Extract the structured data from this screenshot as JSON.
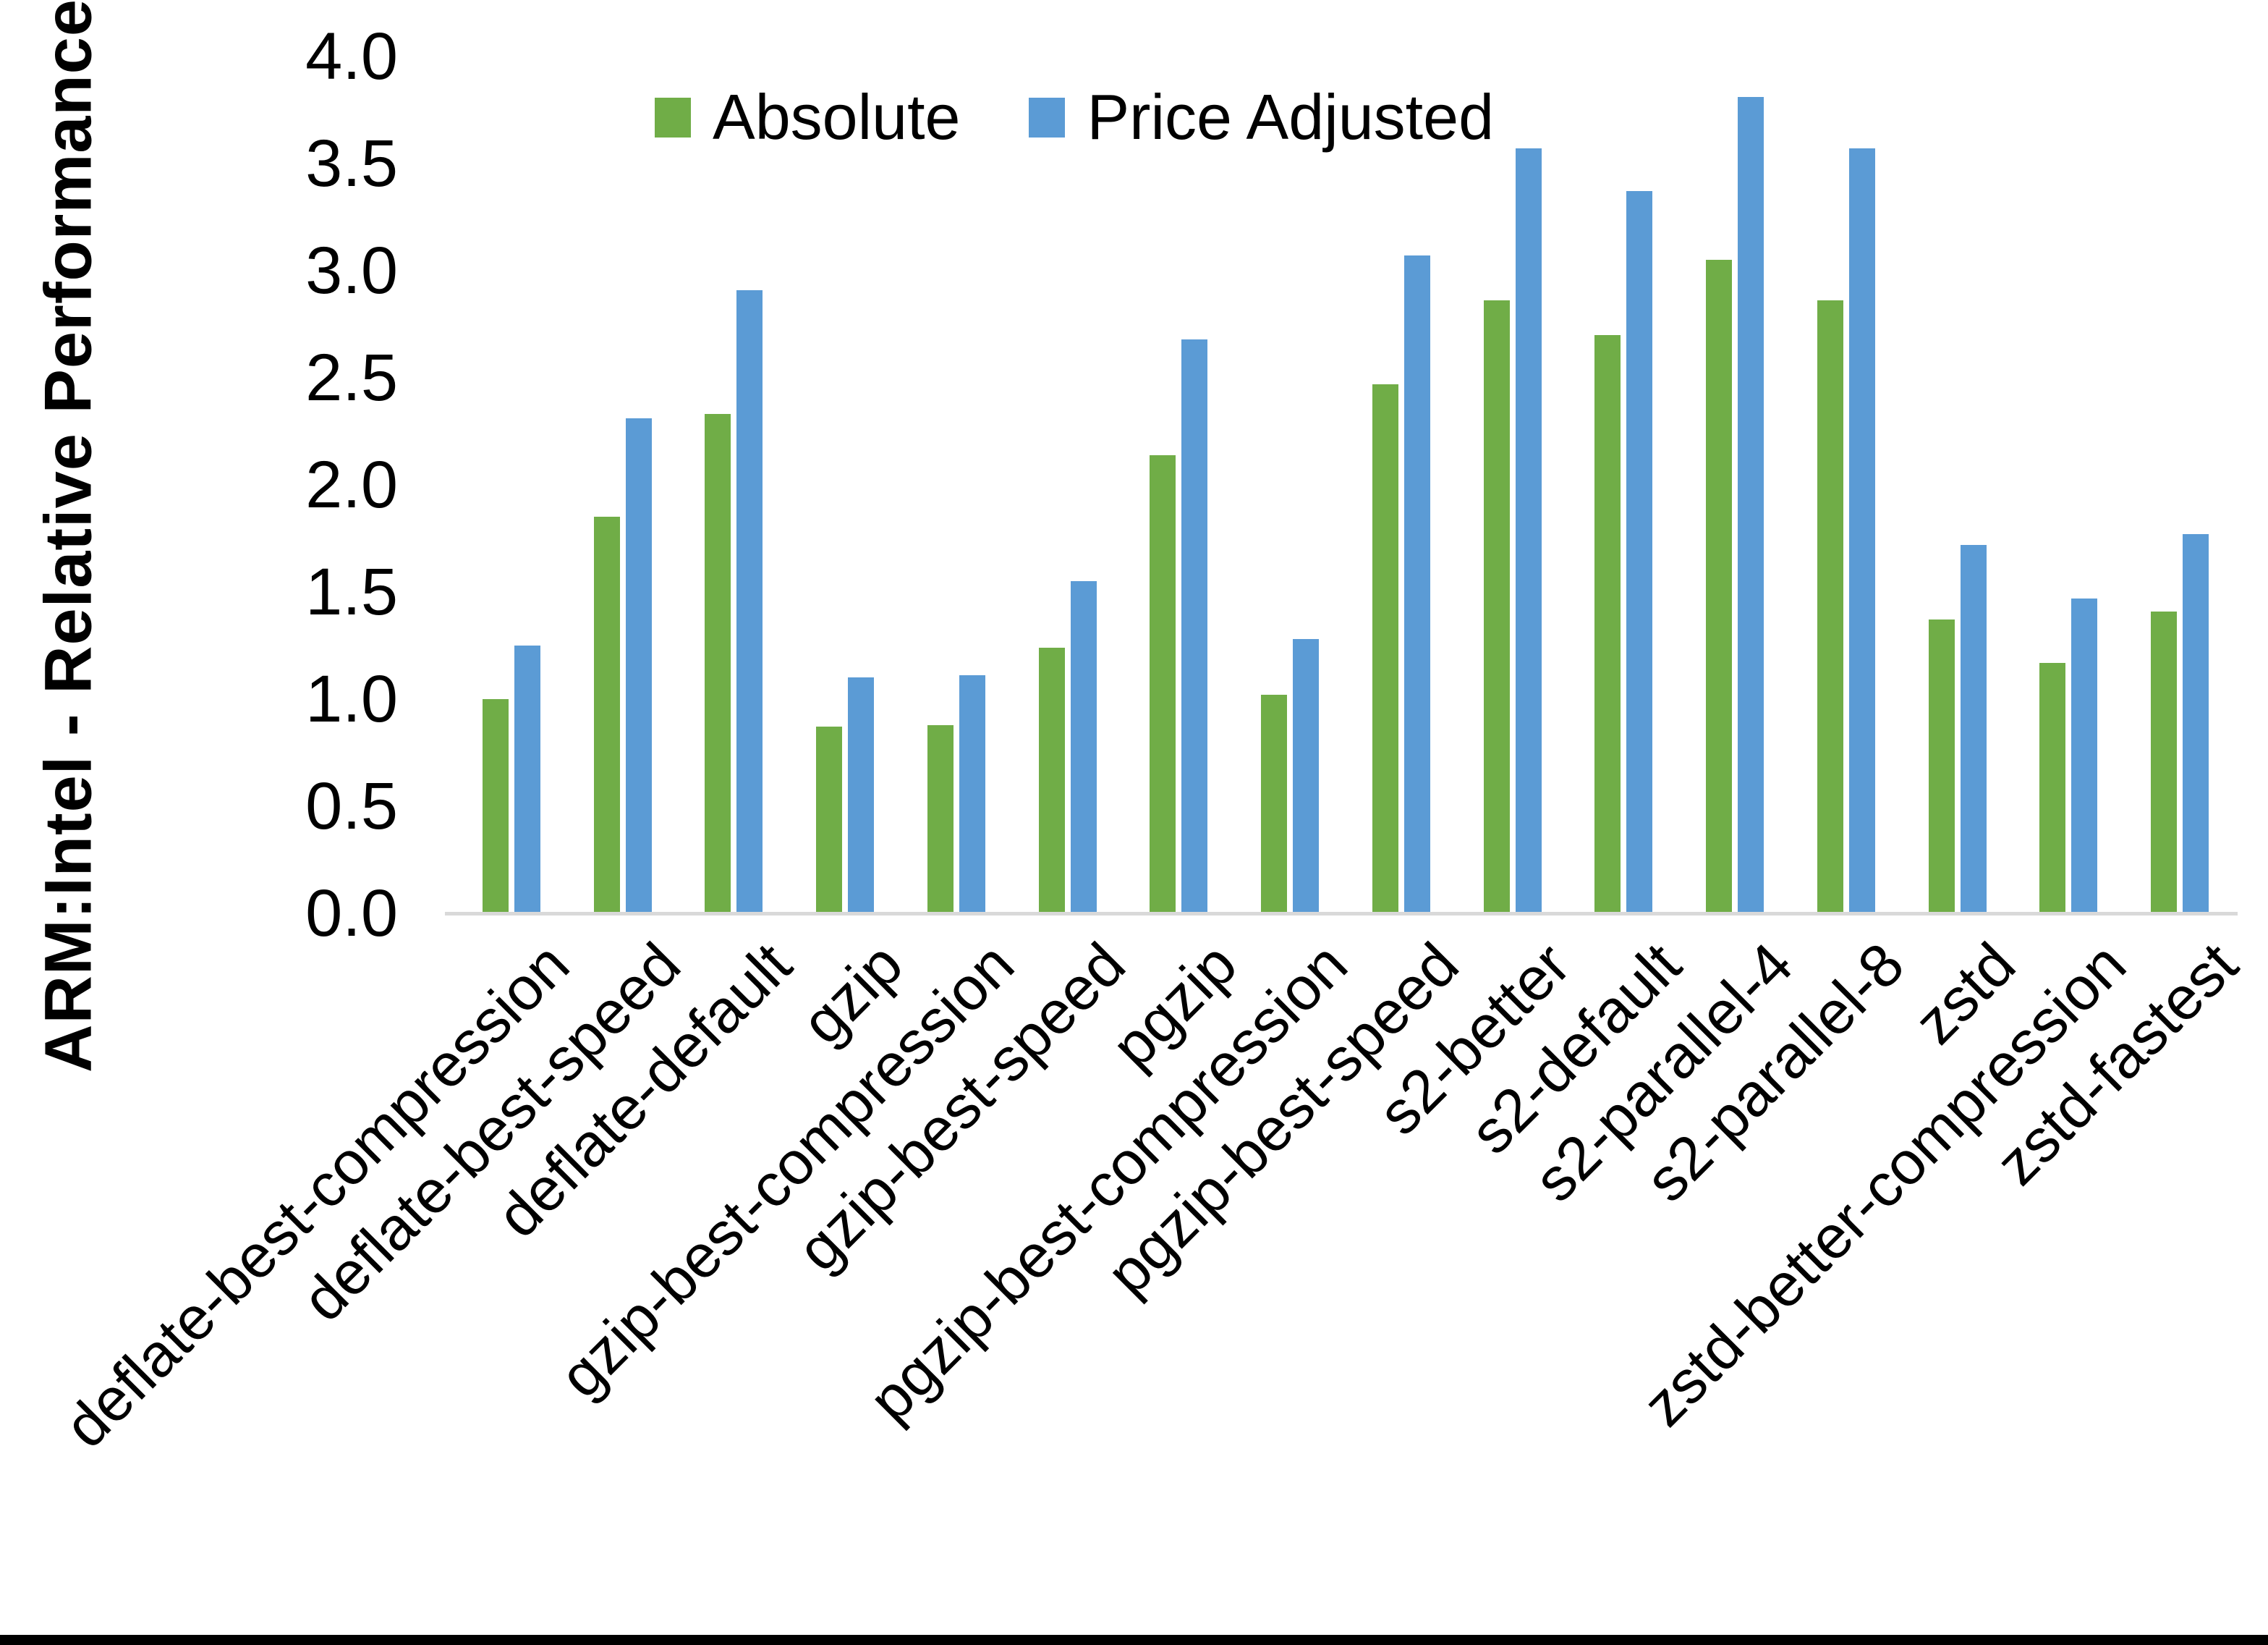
{
  "chart_data": {
    "type": "bar",
    "title": "",
    "ylabel": "ARM:Intel - Relative Performance",
    "xlabel": "",
    "ylim": [
      0.0,
      4.0
    ],
    "ytick_step": 0.5,
    "yticks": [
      "4.0",
      "3.5",
      "3.0",
      "2.5",
      "2.0",
      "1.5",
      "1.0",
      "0.5",
      "0.0"
    ],
    "categories": [
      "deflate-best-compression",
      "deflate-best-speed",
      "deflate-default",
      "gzip",
      "gzip-best-compression",
      "gzip-best-speed",
      "pgzip",
      "pgzip-best-compression",
      "pgzip-best-speed",
      "s2-better",
      "s2-default",
      "s2-parallel-4",
      "s2-parallel-8",
      "zstd",
      "zstd-better-compression",
      "zstd-fastest"
    ],
    "series": [
      {
        "name": "Absolute",
        "color": "#70AD47",
        "values": [
          1.0,
          1.85,
          2.33,
          0.87,
          0.88,
          1.24,
          2.14,
          1.02,
          2.47,
          2.86,
          2.7,
          3.05,
          2.86,
          1.37,
          1.17,
          1.41
        ]
      },
      {
        "name": "Price Adjusted",
        "color": "#5B9BD5",
        "values": [
          1.25,
          2.31,
          2.91,
          1.1,
          1.11,
          1.55,
          2.68,
          1.28,
          3.07,
          3.57,
          3.37,
          3.81,
          3.57,
          1.72,
          1.47,
          1.77
        ]
      }
    ],
    "legend_position": "top-center",
    "grid": false,
    "axis_line_color": "#D9D9D9",
    "text_color": "#000000",
    "background_color": "#FFFFFF",
    "bottom_border_color": "#000000"
  }
}
